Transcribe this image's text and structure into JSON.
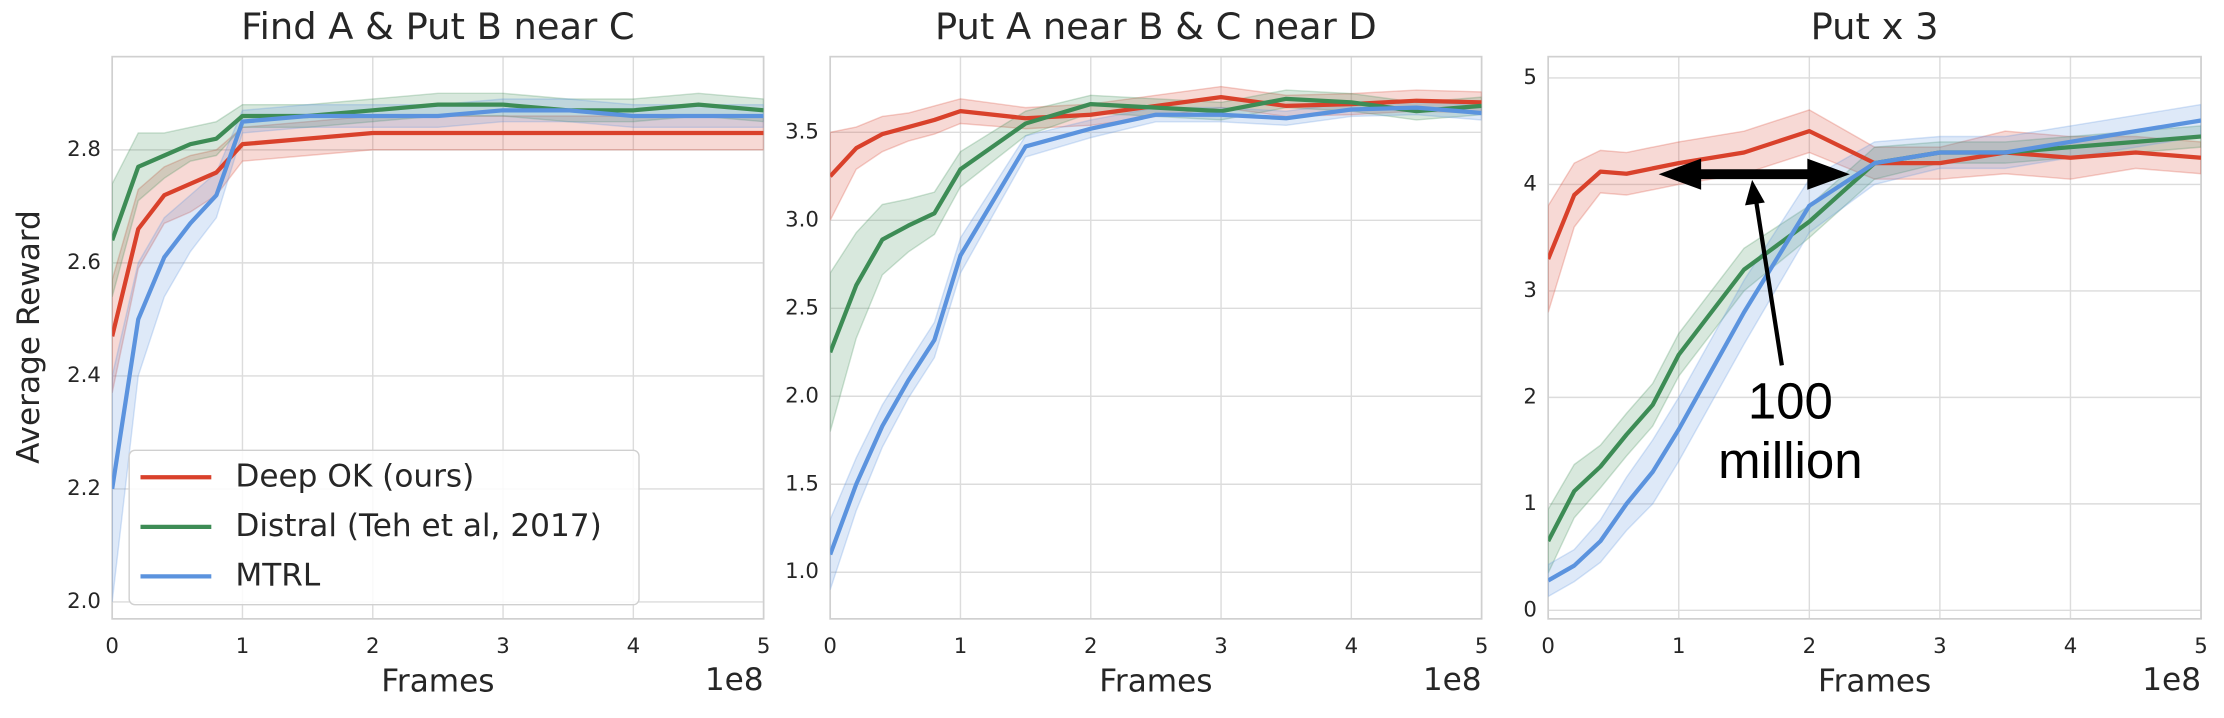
{
  "chart_data": [
    {
      "type": "line",
      "title": "Find A & Put B near C",
      "x_label": "Frames",
      "y_label": "Average Reward",
      "x_offset_label": "1e8",
      "x": [
        0,
        0.2,
        0.4,
        0.6,
        0.8,
        1.0,
        1.5,
        2.0,
        2.5,
        3.0,
        3.5,
        4.0,
        4.5,
        5.0
      ],
      "xlim": [
        0,
        5
      ],
      "xticks": [
        0,
        1,
        2,
        3,
        4,
        5
      ],
      "ylim": [
        1.97,
        2.965
      ],
      "yticks": [
        {
          "value": 2.0,
          "label": "2.0"
        },
        {
          "value": 2.2,
          "label": "2.2"
        },
        {
          "value": 2.4,
          "label": "2.4"
        },
        {
          "value": 2.6,
          "label": "2.6"
        },
        {
          "value": 2.8,
          "label": "2.8"
        }
      ],
      "grid": true,
      "legend": "lower left",
      "series": [
        {
          "name": "Deep OK (ours)",
          "color": "#d9412b",
          "values": [
            2.47,
            2.66,
            2.72,
            2.74,
            2.76,
            2.81,
            2.82,
            2.83,
            2.83,
            2.83,
            2.83,
            2.83,
            2.83,
            2.83
          ],
          "errors": [
            0.1,
            0.07,
            0.05,
            0.05,
            0.04,
            0.03,
            0.03,
            0.03,
            0.03,
            0.03,
            0.03,
            0.03,
            0.03,
            0.03
          ]
        },
        {
          "name": "Distral (Teh et al, 2017)",
          "color": "#3d8c55",
          "values": [
            2.64,
            2.77,
            2.79,
            2.81,
            2.82,
            2.86,
            2.86,
            2.87,
            2.88,
            2.88,
            2.87,
            2.87,
            2.88,
            2.87
          ],
          "errors": [
            0.1,
            0.06,
            0.04,
            0.03,
            0.03,
            0.02,
            0.02,
            0.02,
            0.02,
            0.02,
            0.02,
            0.02,
            0.02,
            0.02
          ]
        },
        {
          "name": "MTRL",
          "color": "#5b93de",
          "values": [
            2.2,
            2.5,
            2.61,
            2.67,
            2.72,
            2.85,
            2.86,
            2.86,
            2.86,
            2.87,
            2.87,
            2.86,
            2.86,
            2.86
          ],
          "errors": [
            0.2,
            0.1,
            0.07,
            0.05,
            0.04,
            0.02,
            0.02,
            0.02,
            0.02,
            0.02,
            0.02,
            0.02,
            0.02,
            0.02
          ]
        }
      ]
    },
    {
      "type": "line",
      "title": "Put A near B & C near D",
      "x_label": "Frames",
      "x_offset_label": "1e8",
      "x": [
        0,
        0.2,
        0.4,
        0.6,
        0.8,
        1.0,
        1.5,
        2.0,
        2.5,
        3.0,
        3.5,
        4.0,
        4.5,
        5.0
      ],
      "xlim": [
        0,
        5
      ],
      "xticks": [
        0,
        1,
        2,
        3,
        4,
        5
      ],
      "ylim": [
        0.735,
        3.93
      ],
      "yticks": [
        {
          "value": 1.0,
          "label": "1.0"
        },
        1.5,
        {
          "value": 2.0,
          "label": "2.0"
        },
        2.5,
        {
          "value": 3.0,
          "label": "3.0"
        },
        3.5
      ],
      "grid": true,
      "series": [
        {
          "color": "#d9412b",
          "values": [
            3.25,
            3.41,
            3.49,
            3.53,
            3.57,
            3.62,
            3.58,
            3.6,
            3.65,
            3.7,
            3.65,
            3.66,
            3.68,
            3.67
          ],
          "errors": [
            0.25,
            0.12,
            0.1,
            0.08,
            0.08,
            0.07,
            0.06,
            0.06,
            0.06,
            0.06,
            0.06,
            0.06,
            0.06,
            0.06
          ]
        },
        {
          "color": "#3d8c55",
          "values": [
            2.25,
            2.63,
            2.89,
            2.97,
            3.04,
            3.29,
            3.55,
            3.66,
            3.64,
            3.62,
            3.69,
            3.67,
            3.62,
            3.65
          ],
          "errors": [
            0.45,
            0.3,
            0.2,
            0.15,
            0.12,
            0.1,
            0.07,
            0.05,
            0.05,
            0.05,
            0.05,
            0.05,
            0.05,
            0.05
          ]
        },
        {
          "color": "#5b93de",
          "values": [
            1.1,
            1.5,
            1.83,
            2.09,
            2.32,
            2.8,
            3.42,
            3.52,
            3.6,
            3.6,
            3.58,
            3.63,
            3.64,
            3.61
          ],
          "errors": [
            0.2,
            0.15,
            0.12,
            0.1,
            0.1,
            0.1,
            0.06,
            0.05,
            0.04,
            0.04,
            0.04,
            0.04,
            0.04,
            0.04
          ]
        }
      ]
    },
    {
      "type": "line",
      "title": "Put x 3",
      "x_label": "Frames",
      "x_offset_label": "1e8",
      "x": [
        0,
        0.2,
        0.4,
        0.6,
        0.8,
        1.0,
        1.5,
        2.0,
        2.5,
        3.0,
        3.5,
        4.0,
        4.5,
        5.0
      ],
      "xlim": [
        0,
        5
      ],
      "xticks": [
        0,
        1,
        2,
        3,
        4,
        5
      ],
      "ylim": [
        -0.08,
        5.2
      ],
      "yticks": [
        0,
        1,
        2,
        3,
        4,
        5
      ],
      "grid": true,
      "annotation": [
        "100",
        "million"
      ],
      "series": [
        {
          "color": "#d9412b",
          "values": [
            3.3,
            3.9,
            4.12,
            4.1,
            4.15,
            4.2,
            4.3,
            4.5,
            4.2,
            4.2,
            4.3,
            4.25,
            4.3,
            4.25
          ],
          "errors": [
            0.5,
            0.3,
            0.2,
            0.2,
            0.2,
            0.2,
            0.2,
            0.2,
            0.15,
            0.15,
            0.2,
            0.2,
            0.15,
            0.15
          ]
        },
        {
          "color": "#3d8c55",
          "values": [
            0.65,
            1.12,
            1.35,
            1.65,
            1.93,
            2.4,
            3.2,
            3.65,
            4.2,
            4.3,
            4.3,
            4.35,
            4.4,
            4.45
          ],
          "errors": [
            0.3,
            0.25,
            0.2,
            0.2,
            0.2,
            0.2,
            0.2,
            0.15,
            0.15,
            0.1,
            0.1,
            0.1,
            0.1,
            0.1
          ]
        },
        {
          "color": "#5b93de",
          "values": [
            0.28,
            0.42,
            0.65,
            1.0,
            1.3,
            1.7,
            2.8,
            3.8,
            4.2,
            4.3,
            4.3,
            4.4,
            4.5,
            4.6
          ],
          "errors": [
            0.15,
            0.15,
            0.2,
            0.25,
            0.3,
            0.3,
            0.3,
            0.25,
            0.2,
            0.15,
            0.15,
            0.15,
            0.15,
            0.15
          ]
        }
      ]
    }
  ]
}
